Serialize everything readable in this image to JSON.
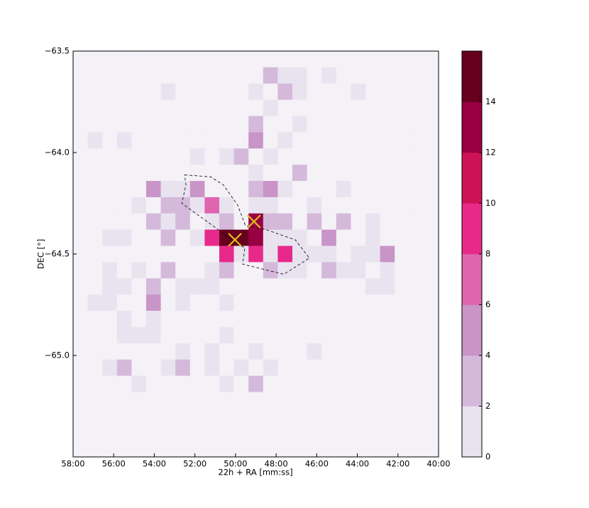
{
  "chart_data": {
    "type": "heatmap",
    "x_label": "22h + RA [mm:ss]",
    "y_label": "DEC [°]",
    "xlim": [
      58,
      40
    ],
    "ylim": [
      -65.5,
      -63.5
    ],
    "xticks": [
      {
        "value": 58,
        "label": "58:00"
      },
      {
        "value": 56,
        "label": "56:00"
      },
      {
        "value": 54,
        "label": "54:00"
      },
      {
        "value": 52,
        "label": "52:00"
      },
      {
        "value": 50,
        "label": "50:00"
      },
      {
        "value": 48,
        "label": "48:00"
      },
      {
        "value": 46,
        "label": "46:00"
      },
      {
        "value": 44,
        "label": "44:00"
      },
      {
        "value": 42,
        "label": "42:00"
      },
      {
        "value": 40,
        "label": "40:00"
      }
    ],
    "yticks": [
      {
        "value": -63.5,
        "label": "−63.5"
      },
      {
        "value": -64.0,
        "label": "−64.0"
      },
      {
        "value": -64.5,
        "label": "−64.5"
      },
      {
        "value": -65.0,
        "label": "−65.0"
      }
    ],
    "x_bins": [
      58,
      57.28,
      56.56,
      55.84,
      55.12,
      54.4,
      53.68,
      52.96,
      52.24,
      51.52,
      50.8,
      50.08,
      49.36,
      48.64,
      47.92,
      47.2,
      46.48,
      45.76,
      45.04,
      44.32,
      43.6,
      42.88,
      42.16,
      41.44,
      40.72,
      40
    ],
    "y_bins": [
      -63.5,
      -63.58,
      -63.66,
      -63.74,
      -63.82,
      -63.9,
      -63.98,
      -64.06,
      -64.14,
      -64.22,
      -64.3,
      -64.38,
      -64.46,
      -64.54,
      -64.62,
      -64.7,
      -64.78,
      -64.86,
      -64.94,
      -65.02,
      -65.1,
      -65.18,
      -65.26,
      -65.34,
      -65.42,
      -65.5
    ],
    "values": [
      [
        0,
        0,
        0,
        0,
        0,
        0,
        0,
        0,
        0,
        0,
        0,
        0,
        0,
        0,
        0,
        0,
        0,
        0,
        0,
        0,
        0,
        0,
        0,
        0,
        0
      ],
      [
        0,
        0,
        0,
        0,
        0,
        0,
        0,
        0,
        0,
        0,
        0,
        0,
        0,
        3,
        1,
        1,
        0,
        1,
        0,
        0,
        0,
        0,
        0,
        0,
        0
      ],
      [
        0,
        0,
        0,
        0,
        0,
        0,
        1,
        0,
        0,
        0,
        0,
        0,
        1,
        0,
        3,
        1,
        0,
        0,
        0,
        1,
        0,
        0,
        0,
        0,
        0
      ],
      [
        0,
        0,
        0,
        0,
        0,
        0,
        0,
        0,
        0,
        0,
        0,
        0,
        0,
        1,
        0,
        0,
        0,
        0,
        0,
        0,
        0,
        0,
        0,
        0,
        0
      ],
      [
        0,
        0,
        0,
        0,
        0,
        0,
        0,
        0,
        0,
        0,
        0,
        0,
        3,
        0,
        0,
        1,
        0,
        0,
        0,
        0,
        0,
        0,
        0,
        0,
        0
      ],
      [
        0,
        1,
        0,
        1,
        0,
        0,
        0,
        0,
        0,
        0,
        0,
        0,
        5,
        0,
        1,
        0,
        0,
        0,
        0,
        0,
        0,
        0,
        0,
        0,
        0
      ],
      [
        0,
        0,
        0,
        0,
        0,
        0,
        0,
        0,
        1,
        0,
        1,
        3,
        0,
        1,
        0,
        0,
        0,
        0,
        0,
        0,
        0,
        0,
        0,
        0,
        0
      ],
      [
        0,
        0,
        0,
        0,
        0,
        0,
        0,
        0,
        0,
        0,
        0,
        0,
        1,
        0,
        0,
        3,
        0,
        0,
        0,
        0,
        0,
        0,
        0,
        0,
        0
      ],
      [
        0,
        0,
        0,
        0,
        0,
        5,
        1,
        1,
        5,
        0,
        0,
        0,
        3,
        5,
        1,
        0,
        0,
        0,
        1,
        0,
        0,
        0,
        0,
        0,
        0
      ],
      [
        0,
        0,
        0,
        0,
        1,
        0,
        3,
        3,
        1,
        7,
        1,
        0,
        1,
        1,
        0,
        0,
        1,
        0,
        0,
        0,
        0,
        0,
        0,
        0,
        0
      ],
      [
        0,
        0,
        0,
        0,
        0,
        3,
        1,
        3,
        0,
        1,
        3,
        0,
        13,
        3,
        3,
        0,
        3,
        0,
        3,
        0,
        1,
        0,
        0,
        0,
        0
      ],
      [
        0,
        0,
        1,
        1,
        0,
        0,
        3,
        0,
        1,
        9,
        15,
        15,
        13,
        1,
        1,
        1,
        0,
        5,
        0,
        0,
        1,
        0,
        0,
        0,
        0
      ],
      [
        0,
        0,
        0,
        0,
        0,
        0,
        0,
        0,
        0,
        0,
        9,
        1,
        9,
        1,
        9,
        1,
        1,
        1,
        0,
        1,
        1,
        5,
        0,
        0,
        0
      ],
      [
        0,
        0,
        1,
        0,
        1,
        0,
        3,
        0,
        0,
        1,
        3,
        0,
        0,
        3,
        1,
        1,
        0,
        3,
        1,
        1,
        0,
        1,
        0,
        0,
        0
      ],
      [
        0,
        0,
        1,
        1,
        0,
        3,
        0,
        1,
        1,
        1,
        0,
        0,
        0,
        0,
        0,
        0,
        0,
        0,
        0,
        0,
        1,
        1,
        0,
        0,
        0
      ],
      [
        0,
        1,
        1,
        0,
        0,
        5,
        0,
        1,
        0,
        0,
        1,
        0,
        0,
        0,
        0,
        0,
        0,
        0,
        0,
        0,
        0,
        0,
        0,
        0,
        0
      ],
      [
        0,
        0,
        0,
        1,
        0,
        1,
        0,
        0,
        0,
        0,
        0,
        0,
        0,
        0,
        0,
        0,
        0,
        0,
        0,
        0,
        0,
        0,
        0,
        0,
        0
      ],
      [
        0,
        0,
        0,
        1,
        1,
        1,
        0,
        0,
        0,
        0,
        1,
        0,
        0,
        0,
        0,
        0,
        0,
        0,
        0,
        0,
        0,
        0,
        0,
        0,
        0
      ],
      [
        0,
        0,
        0,
        0,
        0,
        0,
        0,
        1,
        0,
        1,
        0,
        0,
        1,
        0,
        0,
        0,
        1,
        0,
        0,
        0,
        0,
        0,
        0,
        0,
        0
      ],
      [
        0,
        0,
        1,
        3,
        0,
        0,
        1,
        3,
        0,
        1,
        0,
        1,
        0,
        1,
        0,
        0,
        0,
        0,
        0,
        0,
        0,
        0,
        0,
        0,
        0
      ],
      [
        0,
        0,
        0,
        0,
        1,
        0,
        0,
        0,
        0,
        0,
        1,
        0,
        3,
        0,
        0,
        0,
        0,
        0,
        0,
        0,
        0,
        0,
        0,
        0,
        0
      ],
      [
        0,
        0,
        0,
        0,
        0,
        0,
        0,
        0,
        0,
        0,
        0,
        0,
        0,
        0,
        0,
        0,
        0,
        0,
        0,
        0,
        0,
        0,
        0,
        0,
        0
      ],
      [
        0,
        0,
        0,
        0,
        0,
        0,
        0,
        0,
        0,
        0,
        0,
        0,
        0,
        0,
        0,
        0,
        0,
        0,
        0,
        0,
        0,
        0,
        0,
        0,
        0
      ],
      [
        0,
        0,
        0,
        0,
        0,
        0,
        0,
        0,
        0,
        0,
        0,
        0,
        0,
        0,
        0,
        0,
        0,
        0,
        0,
        0,
        0,
        0,
        0,
        0,
        0
      ],
      [
        0,
        0,
        0,
        0,
        0,
        0,
        0,
        0,
        0,
        0,
        0,
        0,
        0,
        0,
        0,
        0,
        0,
        0,
        0,
        0,
        0,
        0,
        0,
        0,
        0
      ]
    ],
    "zero_color": "#f4f1f7",
    "colorbar": {
      "lim": [
        0,
        16
      ],
      "levels": [
        0,
        2,
        4,
        6,
        8,
        10,
        12,
        14,
        16
      ],
      "colors": [
        "#e9e3f0",
        "#d4b9da",
        "#c994c7",
        "#df65b0",
        "#e7298a",
        "#ce1256",
        "#980043",
        "#67001f"
      ],
      "ticks": [
        0,
        2,
        4,
        6,
        8,
        10,
        12,
        14
      ]
    },
    "markers": {
      "x": [
        49.09,
        50.03
      ],
      "y": [
        -64.34,
        -64.43
      ],
      "color": "#e0bf1a"
    },
    "polygon": {
      "x": [
        52.51,
        51.22,
        50.59,
        49.89,
        49.51,
        48.49,
        47.06,
        46.36,
        47.62,
        49.65,
        49.54,
        50.07,
        51.12,
        52.65,
        52.44
      ],
      "y": [
        -64.11,
        -64.12,
        -64.16,
        -64.26,
        -64.36,
        -64.38,
        -64.43,
        -64.52,
        -64.6,
        -64.55,
        -64.47,
        -64.44,
        -64.36,
        -64.25,
        -64.16
      ],
      "color": "#000000"
    }
  }
}
